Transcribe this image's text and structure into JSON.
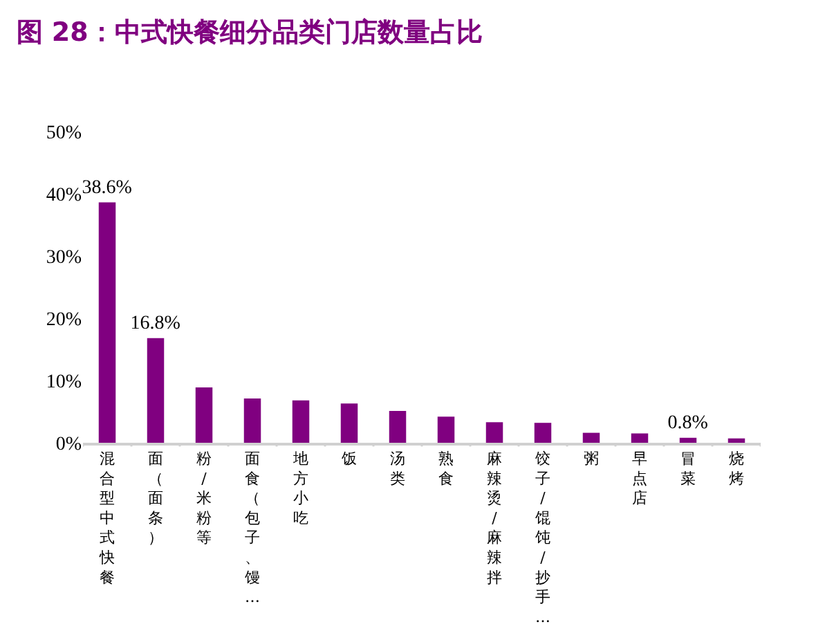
{
  "chart_data": {
    "type": "bar",
    "title": "图 28：中式快餐细分品类门店数量占比",
    "categories": [
      "混合型中式快餐",
      "面（面条）",
      "粉/米粉等",
      "面食（包子、馒…",
      "地方小吃",
      "饭",
      "汤类",
      "熟食",
      "麻辣烫/麻辣拌",
      "饺子/馄饨/抄手…",
      "粥",
      "早点店",
      "冒菜",
      "烧烤"
    ],
    "values": [
      38.6,
      16.8,
      8.9,
      7.1,
      6.8,
      6.3,
      5.1,
      4.2,
      3.3,
      3.2,
      1.6,
      1.5,
      0.8,
      0.7
    ],
    "value_labels": [
      "38.6%",
      "16.8%",
      null,
      null,
      null,
      null,
      null,
      null,
      null,
      null,
      null,
      null,
      "0.8%",
      null
    ],
    "color": "#800080",
    "ylim": [
      0,
      50
    ],
    "yticks": [
      {
        "value": 0,
        "label": "0%"
      },
      {
        "value": 10,
        "label": "10%"
      },
      {
        "value": 20,
        "label": "20%"
      },
      {
        "value": 30,
        "label": "30%"
      },
      {
        "value": 40,
        "label": "40%"
      },
      {
        "value": 50,
        "label": "50%"
      }
    ],
    "legend": false
  }
}
